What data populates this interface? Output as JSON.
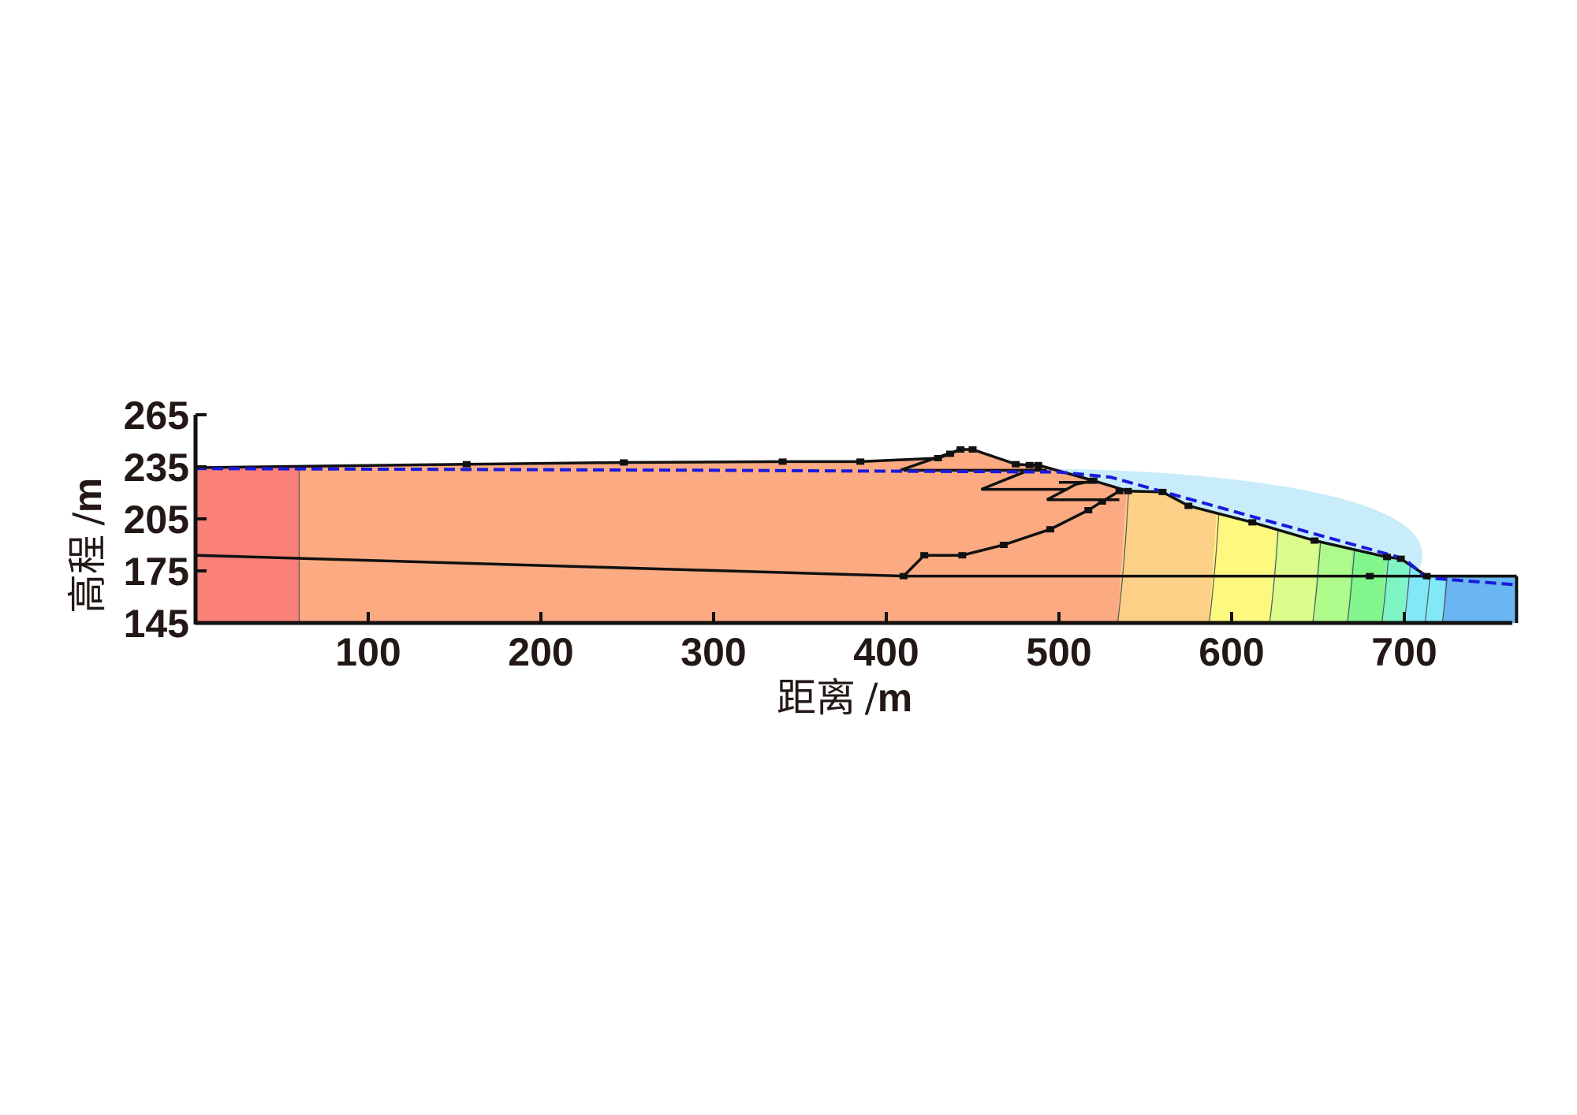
{
  "x_axis": {
    "title": "距离",
    "unit": "m",
    "ticks": [
      100,
      200,
      300,
      400,
      500,
      600,
      700
    ],
    "range": [
      0,
      765
    ]
  },
  "y_axis": {
    "title": "高程",
    "unit": "m",
    "ticks": [
      145,
      175,
      205,
      235,
      265
    ],
    "range": [
      145,
      265
    ]
  },
  "colors": {
    "zone_red": "#fa8078",
    "zone_salmon": "#fbaa82",
    "zone_orange": "#fcd086",
    "zone_yellow": "#fdf97f",
    "zone_yellowgreen": "#dcfc8c",
    "zone_green": "#aefa8a",
    "zone_green2": "#82f58c",
    "zone_aqua": "#7ef5c3",
    "zone_cyan": "#82e8f8",
    "zone_blue": "#6ab6f2",
    "pond_water": "#c8ecfa",
    "phreatic_line": "#1a1adc",
    "outline": "#111111"
  },
  "chart_data": {
    "type": "cross-section",
    "ground_surface": [
      [
        0,
        234.5
      ],
      [
        157,
        236.5
      ],
      [
        248,
        237.5
      ],
      [
        340,
        238
      ],
      [
        385,
        238
      ],
      [
        430,
        240
      ],
      [
        437,
        242.5
      ],
      [
        443,
        245
      ],
      [
        450,
        245
      ],
      [
        475,
        236.5
      ],
      [
        483,
        236
      ],
      [
        488,
        236
      ],
      [
        520,
        227
      ],
      [
        540,
        221
      ],
      [
        560,
        220.5
      ],
      [
        575,
        212.5
      ],
      [
        612,
        203
      ],
      [
        648,
        192.5
      ],
      [
        690,
        183
      ],
      [
        698,
        182
      ],
      [
        713,
        172
      ],
      [
        765,
        172
      ]
    ],
    "foundation_boundary": [
      [
        0,
        184
      ],
      [
        410,
        172
      ],
      [
        765,
        172
      ]
    ],
    "phreatic_line": [
      [
        0,
        234
      ],
      [
        300,
        233
      ],
      [
        500,
        232
      ],
      [
        530,
        229
      ],
      [
        700,
        182
      ],
      [
        713,
        171
      ],
      [
        765,
        167
      ]
    ],
    "inner_dikes": [
      [
        [
          410,
          172
        ],
        [
          422,
          184
        ],
        [
          444,
          184
        ],
        [
          468,
          190
        ],
        [
          495,
          199
        ],
        [
          517,
          210
        ],
        [
          525,
          215
        ],
        [
          535,
          221
        ]
      ],
      [
        [
          455,
          222
        ],
        [
          480,
          232
        ],
        [
          490,
          234
        ]
      ],
      [
        [
          493,
          216
        ],
        [
          510,
          225
        ],
        [
          520,
          227
        ]
      ],
      [
        [
          408,
          233
        ],
        [
          443,
          245
        ]
      ],
      [
        [
          410,
          233
        ],
        [
          493,
          233
        ]
      ],
      [
        [
          455,
          222
        ],
        [
          505,
          222
        ]
      ],
      [
        [
          493,
          216
        ],
        [
          535,
          216
        ]
      ],
      [
        [
          500,
          226
        ],
        [
          520,
          226
        ]
      ]
    ],
    "contour_x": [
      60,
      542,
      595,
      630,
      655,
      675,
      695,
      708,
      720,
      730
    ]
  }
}
